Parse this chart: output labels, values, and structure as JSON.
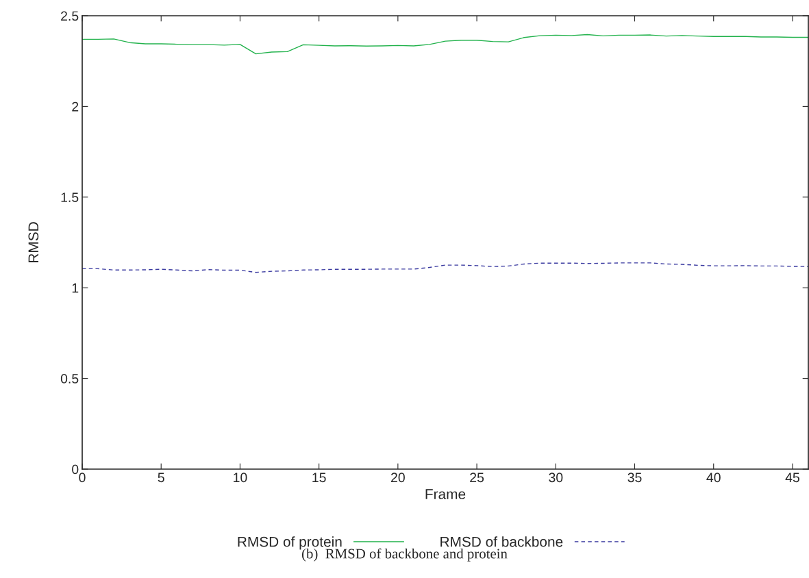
{
  "chart_data": {
    "type": "line",
    "xlabel": "Frame",
    "ylabel": "RMSD",
    "x": [
      0,
      1,
      2,
      3,
      4,
      5,
      6,
      7,
      8,
      9,
      10,
      11,
      12,
      13,
      14,
      15,
      16,
      17,
      18,
      19,
      20,
      21,
      22,
      23,
      24,
      25,
      26,
      27,
      28,
      29,
      30,
      31,
      32,
      33,
      34,
      35,
      36,
      37,
      38,
      39,
      40,
      41,
      42,
      43,
      44,
      45,
      46
    ],
    "series": [
      {
        "name": "RMSD of protein",
        "color": "#22b24c",
        "line_style": "solid",
        "values": [
          2.37,
          2.37,
          2.372,
          2.352,
          2.345,
          2.345,
          2.343,
          2.341,
          2.341,
          2.338,
          2.342,
          2.29,
          2.3,
          2.302,
          2.34,
          2.337,
          2.334,
          2.335,
          2.333,
          2.334,
          2.336,
          2.334,
          2.342,
          2.36,
          2.365,
          2.365,
          2.358,
          2.356,
          2.38,
          2.39,
          2.393,
          2.391,
          2.396,
          2.389,
          2.393,
          2.393,
          2.394,
          2.388,
          2.391,
          2.388,
          2.386,
          2.386,
          2.386,
          2.383,
          2.383,
          2.381,
          2.381
        ]
      },
      {
        "name": "RMSD of backbone",
        "color": "#3a3aa0",
        "line_style": "dashed",
        "values": [
          1.105,
          1.105,
          1.098,
          1.098,
          1.099,
          1.102,
          1.098,
          1.093,
          1.1,
          1.097,
          1.097,
          1.085,
          1.091,
          1.093,
          1.098,
          1.099,
          1.102,
          1.102,
          1.102,
          1.103,
          1.103,
          1.103,
          1.112,
          1.125,
          1.125,
          1.122,
          1.117,
          1.12,
          1.131,
          1.136,
          1.136,
          1.136,
          1.134,
          1.135,
          1.137,
          1.137,
          1.137,
          1.131,
          1.129,
          1.124,
          1.121,
          1.121,
          1.122,
          1.12,
          1.12,
          1.118,
          1.117
        ]
      }
    ],
    "xlim": [
      0,
      46
    ],
    "ylim": [
      0,
      2.5
    ],
    "xticks": [
      0,
      5,
      10,
      15,
      20,
      25,
      30,
      35,
      40,
      45
    ],
    "yticks": [
      0,
      {
        "value": 0.5,
        "label": "0.5"
      },
      1,
      {
        "value": 1.5,
        "label": "1.5"
      },
      2,
      {
        "value": 2.5,
        "label": "2.5"
      }
    ],
    "grid": false,
    "legend": "bottom",
    "marker": "none",
    "annotations": [
      "(b)  RMSD of backbone and protein"
    ]
  }
}
